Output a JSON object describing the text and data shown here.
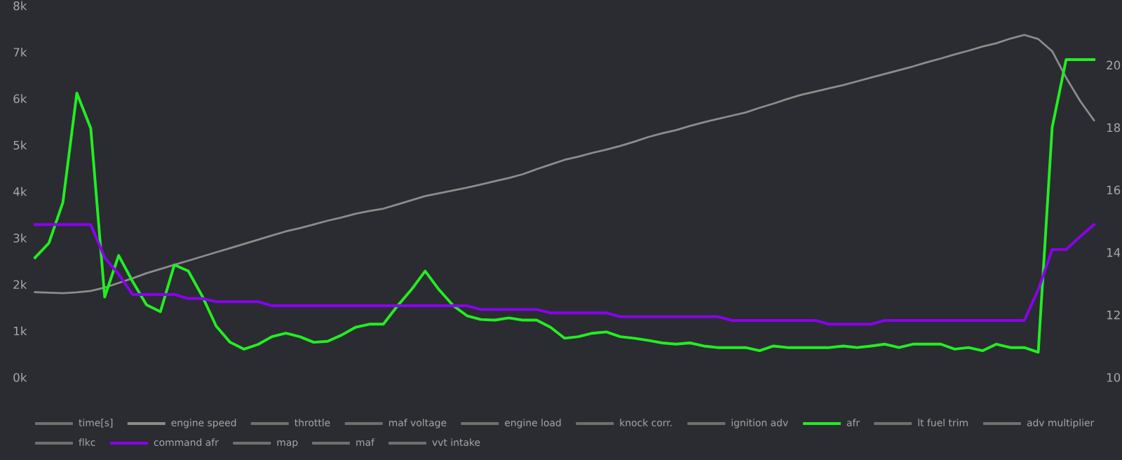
{
  "chart_data": {
    "type": "line",
    "categories": [
      null,
      null,
      null,
      null,
      null,
      null,
      null,
      null,
      null,
      null,
      null,
      null,
      null,
      null,
      null,
      null,
      null,
      null,
      null,
      null,
      null,
      null,
      null,
      null,
      null,
      null,
      null,
      null,
      null,
      null,
      null,
      null,
      null,
      null,
      null,
      null,
      null,
      null,
      null,
      null,
      null,
      null,
      null,
      null,
      null,
      null,
      null,
      null,
      null,
      null,
      null,
      null,
      null,
      null,
      null,
      null,
      null,
      null,
      null,
      null,
      null,
      null,
      null,
      null,
      null,
      null,
      null,
      null,
      null,
      null,
      null,
      null,
      null,
      null,
      null,
      null,
      null
    ],
    "ylim": [
      0,
      8000
    ],
    "yticks": [
      {
        "value": 0,
        "label": "0k"
      },
      {
        "value": 1000,
        "label": "1k"
      },
      {
        "value": 2000,
        "label": "2k"
      },
      {
        "value": 3000,
        "label": "3k"
      },
      {
        "value": 4000,
        "label": "4k"
      },
      {
        "value": 5000,
        "label": "5k"
      },
      {
        "value": 6000,
        "label": "6k"
      },
      {
        "value": 7000,
        "label": "7k"
      },
      {
        "value": 8000,
        "label": "8k"
      }
    ],
    "y2lim": [
      10,
      21.9
    ],
    "grid": false,
    "y2ticks": [
      10,
      12,
      14,
      16,
      18,
      20
    ],
    "legend": "bottom",
    "marker": "none",
    "line_style": "solid",
    "tick_labels": "y",
    "series": [
      {
        "name": "time[s]",
        "color": "#707070",
        "values": [
          null,
          null,
          null,
          null,
          null,
          null,
          null,
          null,
          null,
          null,
          null,
          null,
          null,
          null,
          null,
          null,
          null,
          null,
          null,
          null,
          null,
          null,
          null,
          null,
          null,
          null,
          null,
          null,
          null,
          null,
          null,
          null,
          null,
          null,
          null,
          null,
          null,
          null,
          null,
          null,
          null,
          null,
          null,
          null,
          null,
          null,
          null,
          null,
          null,
          null,
          null,
          null,
          null,
          null,
          null,
          null,
          null,
          null,
          null,
          null,
          null,
          null,
          null,
          null,
          null,
          null,
          null,
          null,
          null,
          null,
          null,
          null,
          null,
          null,
          null,
          null,
          null
        ]
      },
      {
        "name": "engine speed",
        "color": "#8c8c8c",
        "values": [
          1830,
          1820,
          1810,
          1830,
          1860,
          1930,
          2030,
          2130,
          2240,
          2330,
          2420,
          2510,
          2600,
          2690,
          2780,
          2870,
          2960,
          3050,
          3140,
          3210,
          3290,
          3370,
          3440,
          3520,
          3580,
          3630,
          3720,
          3810,
          3900,
          3960,
          4020,
          4080,
          4150,
          4220,
          4290,
          4370,
          4480,
          4580,
          4680,
          4750,
          4830,
          4900,
          4980,
          5070,
          5170,
          5250,
          5320,
          5410,
          5490,
          5560,
          5630,
          5700,
          5800,
          5890,
          5990,
          6080,
          6150,
          6220,
          6290,
          6370,
          6450,
          6530,
          6610,
          6690,
          6780,
          6860,
          6950,
          7030,
          7120,
          7190,
          7290,
          7370,
          7280,
          7020,
          6450,
          5950,
          5530
        ]
      },
      {
        "name": "throttle",
        "color": "#707070",
        "values": [
          null,
          null,
          null,
          null,
          null,
          null,
          null,
          null,
          null,
          null,
          null,
          null,
          null,
          null,
          null,
          null,
          null,
          null,
          null,
          null,
          null,
          null,
          null,
          null,
          null,
          null,
          null,
          null,
          null,
          null,
          null,
          null,
          null,
          null,
          null,
          null,
          null,
          null,
          null,
          null,
          null,
          null,
          null,
          null,
          null,
          null,
          null,
          null,
          null,
          null,
          null,
          null,
          null,
          null,
          null,
          null,
          null,
          null,
          null,
          null,
          null,
          null,
          null,
          null,
          null,
          null,
          null,
          null,
          null,
          null,
          null,
          null,
          null,
          null,
          null,
          null,
          null
        ]
      },
      {
        "name": "maf voltage",
        "color": "#707070",
        "values": [
          null,
          null,
          null,
          null,
          null,
          null,
          null,
          null,
          null,
          null,
          null,
          null,
          null,
          null,
          null,
          null,
          null,
          null,
          null,
          null,
          null,
          null,
          null,
          null,
          null,
          null,
          null,
          null,
          null,
          null,
          null,
          null,
          null,
          null,
          null,
          null,
          null,
          null,
          null,
          null,
          null,
          null,
          null,
          null,
          null,
          null,
          null,
          null,
          null,
          null,
          null,
          null,
          null,
          null,
          null,
          null,
          null,
          null,
          null,
          null,
          null,
          null,
          null,
          null,
          null,
          null,
          null,
          null,
          null,
          null,
          null,
          null,
          null,
          null,
          null,
          null,
          null
        ]
      },
      {
        "name": "engine load",
        "color": "#707070",
        "values": [
          null,
          null,
          null,
          null,
          null,
          null,
          null,
          null,
          null,
          null,
          null,
          null,
          null,
          null,
          null,
          null,
          null,
          null,
          null,
          null,
          null,
          null,
          null,
          null,
          null,
          null,
          null,
          null,
          null,
          null,
          null,
          null,
          null,
          null,
          null,
          null,
          null,
          null,
          null,
          null,
          null,
          null,
          null,
          null,
          null,
          null,
          null,
          null,
          null,
          null,
          null,
          null,
          null,
          null,
          null,
          null,
          null,
          null,
          null,
          null,
          null,
          null,
          null,
          null,
          null,
          null,
          null,
          null,
          null,
          null,
          null,
          null,
          null,
          null,
          null,
          null,
          null
        ]
      },
      {
        "name": "knock corr.",
        "color": "#707070",
        "values": [
          null,
          null,
          null,
          null,
          null,
          null,
          null,
          null,
          null,
          null,
          null,
          null,
          null,
          null,
          null,
          null,
          null,
          null,
          null,
          null,
          null,
          null,
          null,
          null,
          null,
          null,
          null,
          null,
          null,
          null,
          null,
          null,
          null,
          null,
          null,
          null,
          null,
          null,
          null,
          null,
          null,
          null,
          null,
          null,
          null,
          null,
          null,
          null,
          null,
          null,
          null,
          null,
          null,
          null,
          null,
          null,
          null,
          null,
          null,
          null,
          null,
          null,
          null,
          null,
          null,
          null,
          null,
          null,
          null,
          null,
          null,
          null,
          null,
          null,
          null,
          null,
          null
        ]
      },
      {
        "name": "ignition adv",
        "color": "#707070",
        "values": [
          null,
          null,
          null,
          null,
          null,
          null,
          null,
          null,
          null,
          null,
          null,
          null,
          null,
          null,
          null,
          null,
          null,
          null,
          null,
          null,
          null,
          null,
          null,
          null,
          null,
          null,
          null,
          null,
          null,
          null,
          null,
          null,
          null,
          null,
          null,
          null,
          null,
          null,
          null,
          null,
          null,
          null,
          null,
          null,
          null,
          null,
          null,
          null,
          null,
          null,
          null,
          null,
          null,
          null,
          null,
          null,
          null,
          null,
          null,
          null,
          null,
          null,
          null,
          null,
          null,
          null,
          null,
          null,
          null,
          null,
          null,
          null,
          null,
          null,
          null,
          null,
          null
        ]
      },
      {
        "name": "afr",
        "color": "#22ee22",
        "axis": "y2",
        "values": [
          13.83,
          14.3,
          15.6,
          19.1,
          17.97,
          12.57,
          13.9,
          13.07,
          12.32,
          12.1,
          13.6,
          13.4,
          12.6,
          11.64,
          11.12,
          10.9,
          11.05,
          11.3,
          11.41,
          11.3,
          11.12,
          11.15,
          11.35,
          11.6,
          11.7,
          11.7,
          12.28,
          12.8,
          13.4,
          12.8,
          12.3,
          11.97,
          11.85,
          11.83,
          11.9,
          11.83,
          11.83,
          11.6,
          11.25,
          11.3,
          11.41,
          11.45,
          11.3,
          11.25,
          11.18,
          11.1,
          11.06,
          11.1,
          11.0,
          10.95,
          10.95,
          10.95,
          10.85,
          11.0,
          10.95,
          10.95,
          10.95,
          10.95,
          11.0,
          10.95,
          11.0,
          11.06,
          10.95,
          11.06,
          11.06,
          11.06,
          10.9,
          10.95,
          10.85,
          11.06,
          10.95,
          10.95,
          10.8,
          18.0,
          20.17,
          20.17,
          20.17
        ]
      },
      {
        "name": "lt fuel trim",
        "color": "#707070",
        "values": [
          null,
          null,
          null,
          null,
          null,
          null,
          null,
          null,
          null,
          null,
          null,
          null,
          null,
          null,
          null,
          null,
          null,
          null,
          null,
          null,
          null,
          null,
          null,
          null,
          null,
          null,
          null,
          null,
          null,
          null,
          null,
          null,
          null,
          null,
          null,
          null,
          null,
          null,
          null,
          null,
          null,
          null,
          null,
          null,
          null,
          null,
          null,
          null,
          null,
          null,
          null,
          null,
          null,
          null,
          null,
          null,
          null,
          null,
          null,
          null,
          null,
          null,
          null,
          null,
          null,
          null,
          null,
          null,
          null,
          null,
          null,
          null,
          null,
          null,
          null,
          null,
          null
        ]
      },
      {
        "name": "adv multiplier",
        "color": "#707070",
        "values": [
          null,
          null,
          null,
          null,
          null,
          null,
          null,
          null,
          null,
          null,
          null,
          null,
          null,
          null,
          null,
          null,
          null,
          null,
          null,
          null,
          null,
          null,
          null,
          null,
          null,
          null,
          null,
          null,
          null,
          null,
          null,
          null,
          null,
          null,
          null,
          null,
          null,
          null,
          null,
          null,
          null,
          null,
          null,
          null,
          null,
          null,
          null,
          null,
          null,
          null,
          null,
          null,
          null,
          null,
          null,
          null,
          null,
          null,
          null,
          null,
          null,
          null,
          null,
          null,
          null,
          null,
          null,
          null,
          null,
          null,
          null,
          null,
          null,
          null,
          null,
          null,
          null
        ]
      },
      {
        "name": "flkc",
        "color": "#707070",
        "values": [
          null,
          null,
          null,
          null,
          null,
          null,
          null,
          null,
          null,
          null,
          null,
          null,
          null,
          null,
          null,
          null,
          null,
          null,
          null,
          null,
          null,
          null,
          null,
          null,
          null,
          null,
          null,
          null,
          null,
          null,
          null,
          null,
          null,
          null,
          null,
          null,
          null,
          null,
          null,
          null,
          null,
          null,
          null,
          null,
          null,
          null,
          null,
          null,
          null,
          null,
          null,
          null,
          null,
          null,
          null,
          null,
          null,
          null,
          null,
          null,
          null,
          null,
          null,
          null,
          null,
          null,
          null,
          null,
          null,
          null,
          null,
          null,
          null,
          null,
          null,
          null,
          null
        ]
      },
      {
        "name": "command afr",
        "color": "#8a00f0",
        "axis": "y2",
        "values": [
          14.89,
          14.89,
          14.89,
          14.89,
          14.89,
          13.83,
          13.3,
          12.65,
          12.65,
          12.65,
          12.65,
          12.52,
          12.52,
          12.42,
          12.42,
          12.42,
          12.42,
          12.29,
          12.29,
          12.29,
          12.29,
          12.29,
          12.29,
          12.29,
          12.29,
          12.29,
          12.29,
          12.29,
          12.29,
          12.29,
          12.29,
          12.29,
          12.17,
          12.17,
          12.17,
          12.17,
          12.17,
          12.06,
          12.06,
          12.06,
          12.06,
          12.06,
          11.94,
          11.94,
          11.94,
          11.94,
          11.94,
          11.94,
          11.94,
          11.94,
          11.82,
          11.82,
          11.82,
          11.82,
          11.82,
          11.82,
          11.82,
          11.7,
          11.7,
          11.7,
          11.7,
          11.82,
          11.82,
          11.82,
          11.82,
          11.82,
          11.82,
          11.82,
          11.82,
          11.82,
          11.82,
          11.82,
          12.8,
          14.09,
          14.09,
          14.5,
          14.89
        ]
      },
      {
        "name": "map",
        "color": "#707070",
        "values": [
          null,
          null,
          null,
          null,
          null,
          null,
          null,
          null,
          null,
          null,
          null,
          null,
          null,
          null,
          null,
          null,
          null,
          null,
          null,
          null,
          null,
          null,
          null,
          null,
          null,
          null,
          null,
          null,
          null,
          null,
          null,
          null,
          null,
          null,
          null,
          null,
          null,
          null,
          null,
          null,
          null,
          null,
          null,
          null,
          null,
          null,
          null,
          null,
          null,
          null,
          null,
          null,
          null,
          null,
          null,
          null,
          null,
          null,
          null,
          null,
          null,
          null,
          null,
          null,
          null,
          null,
          null,
          null,
          null,
          null,
          null,
          null,
          null,
          null,
          null,
          null,
          null
        ]
      },
      {
        "name": "maf",
        "color": "#707070",
        "values": [
          null,
          null,
          null,
          null,
          null,
          null,
          null,
          null,
          null,
          null,
          null,
          null,
          null,
          null,
          null,
          null,
          null,
          null,
          null,
          null,
          null,
          null,
          null,
          null,
          null,
          null,
          null,
          null,
          null,
          null,
          null,
          null,
          null,
          null,
          null,
          null,
          null,
          null,
          null,
          null,
          null,
          null,
          null,
          null,
          null,
          null,
          null,
          null,
          null,
          null,
          null,
          null,
          null,
          null,
          null,
          null,
          null,
          null,
          null,
          null,
          null,
          null,
          null,
          null,
          null,
          null,
          null,
          null,
          null,
          null,
          null,
          null,
          null,
          null,
          null,
          null,
          null
        ]
      },
      {
        "name": "vvt intake",
        "color": "#707070",
        "values": [
          null,
          null,
          null,
          null,
          null,
          null,
          null,
          null,
          null,
          null,
          null,
          null,
          null,
          null,
          null,
          null,
          null,
          null,
          null,
          null,
          null,
          null,
          null,
          null,
          null,
          null,
          null,
          null,
          null,
          null,
          null,
          null,
          null,
          null,
          null,
          null,
          null,
          null,
          null,
          null,
          null,
          null,
          null,
          null,
          null,
          null,
          null,
          null,
          null,
          null,
          null,
          null,
          null,
          null,
          null,
          null,
          null,
          null,
          null,
          null,
          null,
          null,
          null,
          null,
          null,
          null,
          null,
          null,
          null,
          null,
          null,
          null,
          null,
          null,
          null,
          null,
          null
        ]
      }
    ]
  }
}
